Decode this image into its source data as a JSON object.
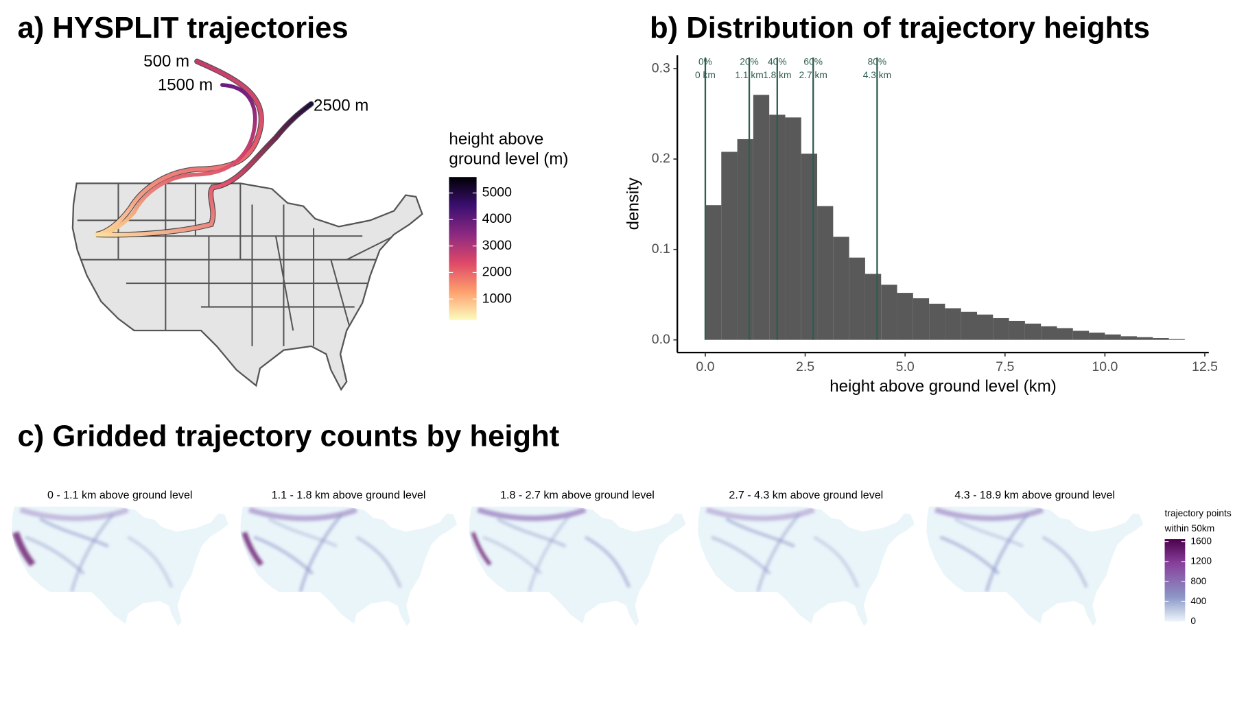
{
  "chart_data": [
    {
      "type": "trajectory-map",
      "title": "a) HYSPLIT trajectories",
      "trajectory_labels": [
        "500 m",
        "1500 m",
        "2500 m"
      ],
      "colorbar": {
        "title": [
          "height above",
          "ground level (m)"
        ],
        "lim": [
          200,
          5600
        ],
        "ticks": [
          1000,
          2000,
          3000,
          4000,
          5000
        ]
      }
    },
    {
      "type": "histogram",
      "title": "b) Distribution of trajectory heights",
      "x_label": "height above ground level (km)",
      "y_label": "density",
      "color": "#595959",
      "bins": [
        0,
        0.4,
        0.8,
        1.2,
        1.6,
        2.0,
        2.4,
        2.8,
        3.2,
        3.6,
        4.0,
        4.4,
        4.8,
        5.2,
        5.6,
        6.0,
        6.4,
        6.8,
        7.2,
        7.6,
        8.0,
        8.4,
        8.8,
        9.2,
        9.6,
        10.0,
        10.4,
        10.8,
        11.2,
        11.6,
        12.0
      ],
      "values": [
        0.149,
        0.208,
        0.222,
        0.271,
        0.249,
        0.246,
        0.206,
        0.148,
        0.114,
        0.091,
        0.073,
        0.061,
        0.052,
        0.046,
        0.04,
        0.035,
        0.031,
        0.028,
        0.024,
        0.021,
        0.018,
        0.015,
        0.013,
        0.01,
        0.008,
        0.006,
        0.004,
        0.003,
        0.002,
        0.001
      ],
      "xlim": [
        -0.7,
        12.6
      ],
      "xticks": [
        {
          "value": 0,
          "label": "0.0"
        },
        2.5,
        {
          "value": 5,
          "label": "5.0"
        },
        7.5,
        {
          "value": 10,
          "label": "10.0"
        },
        12.5
      ],
      "ylim": [
        -0.014,
        0.315
      ],
      "yticks": [
        {
          "value": 0,
          "label": "0.0"
        },
        0.1,
        0.2,
        0.3
      ],
      "quantiles": {
        "color": "#2f5d50",
        "values": [
          0,
          1.1,
          1.8,
          2.7,
          4.3
        ],
        "value_labels": [
          "0 km",
          "1.1 km",
          "1.8 km",
          "2.7 km",
          "4.3 km"
        ],
        "percent_labels": [
          "0%",
          "20%",
          "40%",
          "60%",
          "80%"
        ]
      }
    },
    {
      "type": "gridded-maps",
      "title": "c) Gridded trajectory counts by height",
      "panel_titles": [
        "0 - 1.1 km above ground level",
        "1.1 - 1.8 km above ground level",
        "1.8 - 2.7 km above ground level",
        "2.7 - 4.3 km above ground level",
        "4.3 - 18.9 km above ground level"
      ],
      "colorbar": {
        "title": [
          "trajectory points",
          "within 50km"
        ],
        "lim": [
          0,
          1650
        ],
        "ticks": [
          0,
          400,
          800,
          1200,
          1600
        ]
      }
    }
  ]
}
